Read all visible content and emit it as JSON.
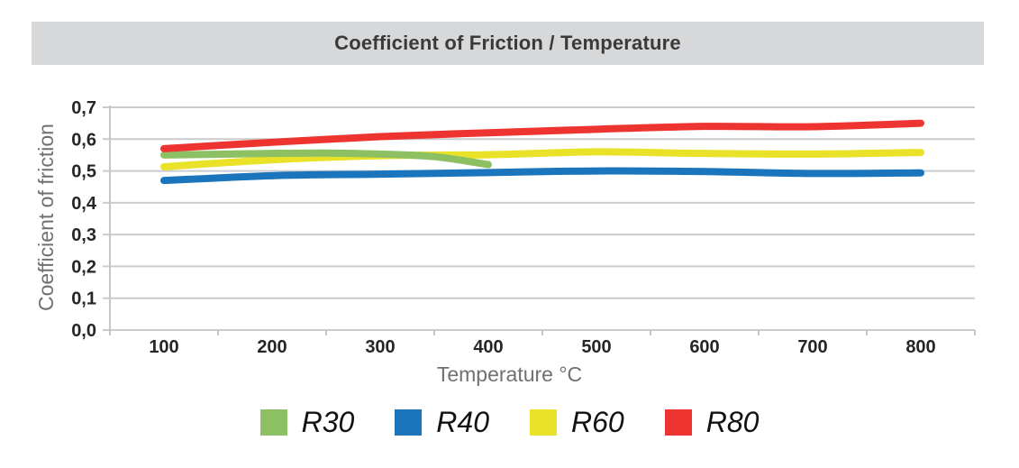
{
  "header": {
    "title": "Coefficient of Friction / Temperature"
  },
  "chart_data": {
    "type": "line",
    "title": "Coefficient of Friction / Temperature",
    "xlabel": "Temperature °C",
    "ylabel": "Coefficient of friction",
    "xlim": [
      50,
      850
    ],
    "ylim": [
      0,
      0.7
    ],
    "grid": true,
    "decimal_separator": ",",
    "legend_position": "bottom",
    "x_tick_values": [
      100,
      200,
      300,
      400,
      500,
      600,
      700,
      800
    ],
    "x_tick_labels": [
      "100",
      "200",
      "300",
      "400",
      "500",
      "600",
      "700",
      "800"
    ],
    "y_tick_values": [
      0,
      0.1,
      0.2,
      0.3,
      0.4,
      0.5,
      0.6,
      0.7
    ],
    "y_tick_labels": [
      "0,0",
      "0,1",
      "0,2",
      "0,3",
      "0,4",
      "0,5",
      "0,6",
      "0,7"
    ],
    "series": [
      {
        "name": "R30",
        "color": "#8CC063",
        "x": [
          100,
          200,
          250,
          300,
          350,
          400
        ],
        "y": [
          0.55,
          0.555,
          0.556,
          0.553,
          0.545,
          0.52
        ]
      },
      {
        "name": "R40",
        "color": "#1B75BC",
        "x": [
          100,
          200,
          300,
          400,
          500,
          600,
          700,
          800
        ],
        "y": [
          0.47,
          0.485,
          0.49,
          0.495,
          0.5,
          0.498,
          0.492,
          0.494
        ]
      },
      {
        "name": "R60",
        "color": "#E9E228",
        "x": [
          100,
          200,
          300,
          400,
          500,
          600,
          700,
          800
        ],
        "y": [
          0.513,
          0.535,
          0.548,
          0.551,
          0.56,
          0.555,
          0.553,
          0.558
        ]
      },
      {
        "name": "R80",
        "color": "#EE3431",
        "x": [
          100,
          200,
          300,
          400,
          500,
          600,
          700,
          800
        ],
        "y": [
          0.57,
          0.59,
          0.608,
          0.62,
          0.631,
          0.64,
          0.639,
          0.65
        ]
      }
    ],
    "draw_order": [
      "R60",
      "R30",
      "R40",
      "R80"
    ],
    "colors": {
      "grid": "#CBCCCE",
      "axis": "#C5C6C8",
      "tick_label": "#262626",
      "axis_title": "#6F7072",
      "title_bar_bg": "#D7D8DA",
      "title_text": "#3A3A3A"
    }
  }
}
